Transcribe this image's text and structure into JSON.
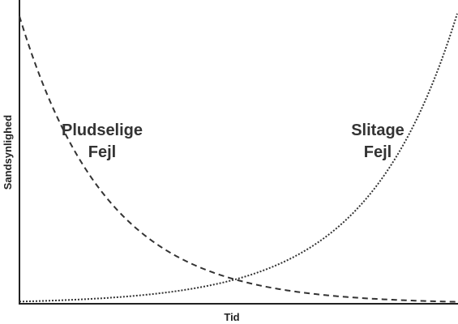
{
  "axes": {
    "x_label": "Tid",
    "y_label": "Sandsynlighed"
  },
  "annotations": [
    {
      "lines": [
        "Pludselige",
        "Fejl"
      ]
    },
    {
      "lines": [
        "Slitage",
        "Fejl"
      ]
    }
  ]
}
